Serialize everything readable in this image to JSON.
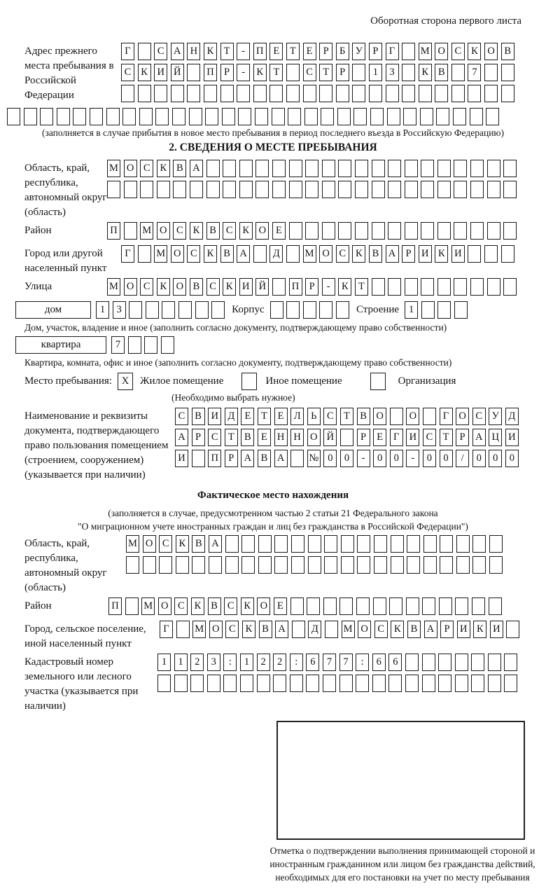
{
  "header": {
    "note": "Оборотная сторона первого листа"
  },
  "prev_address": {
    "label": "Адрес прежнего места пребывания в Российской Федерации",
    "rows": [
      {
        "count": 24,
        "text": "Г САНКТ-ПЕТЕРБУРГ МОСКОВ"
      },
      {
        "count": 24,
        "text": "СКИЙ ПР-КТ СТР 13 КВ 7"
      },
      {
        "count": 24,
        "text": ""
      },
      {
        "count": 30,
        "text": ""
      }
    ],
    "note": "(заполняется в случае прибытия в новое место пребывания в период последнего въезда в Российскую Федерацию)"
  },
  "section2": {
    "title": "2. СВЕДЕНИЯ О МЕСТЕ ПРЕБЫВАНИЯ",
    "oblast": {
      "label": "Область, край, республика, автономный округ (область)",
      "rows": [
        {
          "count": 25,
          "text": "МОСКВА"
        },
        {
          "count": 25,
          "text": ""
        }
      ]
    },
    "raion": {
      "label": "Район",
      "row": {
        "count": 25,
        "text": "П МОСКВСКОЕ"
      }
    },
    "gorod": {
      "label": "Город или другой населенный пункт",
      "row": {
        "count": 24,
        "text": "Г МОСКВА Д МОСКВАРИКИ"
      }
    },
    "ulitsa": {
      "label": "Улица",
      "row": {
        "count": 25,
        "text": "МОСКОВСКИЙ ПР-КТ"
      }
    },
    "dom": {
      "house_label": "дом",
      "house": {
        "count": 8,
        "text": "13"
      },
      "korpus_label": "Корпус",
      "korpus": {
        "count": 5,
        "text": ""
      },
      "stroenie_label": "Строение",
      "stroenie": {
        "count": 4,
        "text": "1"
      },
      "note": "Дом, участок, владение и иное (заполнить согласно документу, подтверждающему право собственности)"
    },
    "kvartira": {
      "label": "квартира",
      "cells": {
        "count": 4,
        "text": "7"
      },
      "note": "Квартира, комната, офис и иное (заполнить согласно документу, подтверждающему право собственности)"
    },
    "mesto": {
      "label": "Место пребывания:",
      "options": [
        {
          "mark": "X",
          "label": "Жилое помещение"
        },
        {
          "mark": "",
          "label": "Иное помещение"
        },
        {
          "mark": "",
          "label": "Организация"
        }
      ],
      "note": "(Необходимо выбрать нужное)"
    },
    "doc": {
      "label": "Наименование и реквизиты документа, подтверждающего право пользования помещением (строением, сооружением) (указывается при наличии)",
      "rows": [
        {
          "count": 21,
          "text": "СВИДЕТЕЛЬСТВО О ГОСУД"
        },
        {
          "count": 21,
          "text": "АРСТВЕННОЙ РЕГИСТРАЦИ"
        },
        {
          "count": 21,
          "text": "И ПРАВА №00-00-00/000"
        }
      ]
    }
  },
  "fact": {
    "title": "Фактическое место нахождения",
    "note1": "(заполняется в случае, предусмотренном частью 2 статьи 21 Федерального закона",
    "note2": "\"О миграционном учете иностранных граждан и лиц без гражданства в Российской Федерации\")",
    "oblast": {
      "label": "Область, край, республика, автономный округ (область)",
      "rows": [
        {
          "count": 23,
          "text": "МОСКВА"
        },
        {
          "count": 23,
          "text": ""
        }
      ]
    },
    "raion": {
      "label": "Район",
      "row": {
        "count": 24,
        "text": "П МОСКВСКОЕ"
      }
    },
    "gorod": {
      "label": "Город, сельское поселение, иной населенный пункт",
      "row": {
        "count": 22,
        "text": "Г МОСКВА Д МОСКВАРИКИ"
      }
    },
    "kadastr": {
      "label": "Кадастровый номер земельного или лесного участка (указывается при наличии)",
      "rows": [
        {
          "count": 22,
          "text": "1123:122:677:66"
        },
        {
          "count": 22,
          "text": ""
        }
      ]
    }
  },
  "stamp": {
    "caption": "Отметка о подтверждении выполнения принимающей стороной и иностранным гражданином или лицом без гражданства действий, необходимых для его постановки на учет по месту пребывания"
  }
}
